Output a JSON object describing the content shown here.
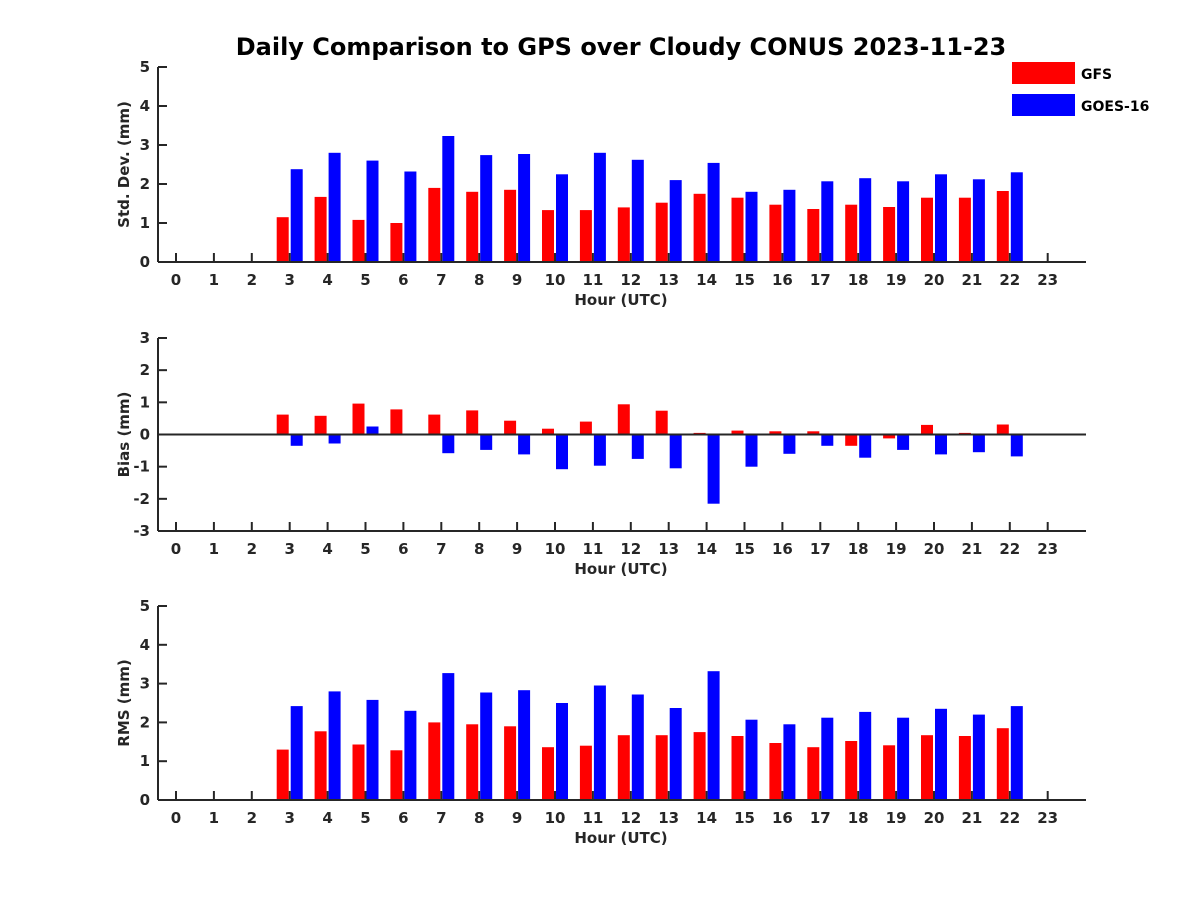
{
  "title": "Daily Comparison to GPS over Cloudy CONUS 2023-11-23",
  "legend": [
    {
      "name": "GFS",
      "color": "#ff0000"
    },
    {
      "name": "GOES-16",
      "color": "#0000ff"
    }
  ],
  "chart_data": [
    {
      "type": "bar",
      "xlabel": "Hour (UTC)",
      "ylabel": "Std. Dev. (mm)",
      "ylim": [
        0,
        5
      ],
      "yticks": [
        0,
        1,
        2,
        3,
        4,
        5
      ],
      "categories": [
        0,
        1,
        2,
        3,
        4,
        5,
        6,
        7,
        8,
        9,
        10,
        11,
        12,
        13,
        14,
        15,
        16,
        17,
        18,
        19,
        20,
        21,
        22,
        23
      ],
      "series": [
        {
          "name": "GFS",
          "color": "#ff0000",
          "values": [
            null,
            null,
            null,
            1.15,
            1.67,
            1.08,
            1.0,
            1.9,
            1.8,
            1.85,
            1.33,
            1.33,
            1.4,
            1.52,
            1.75,
            1.65,
            1.47,
            1.36,
            1.47,
            1.41,
            1.65,
            1.65,
            1.82,
            null
          ]
        },
        {
          "name": "GOES-16",
          "color": "#0000ff",
          "values": [
            null,
            null,
            null,
            2.38,
            2.8,
            2.6,
            2.32,
            3.23,
            2.74,
            2.77,
            2.25,
            2.8,
            2.62,
            2.1,
            2.54,
            1.8,
            1.85,
            2.07,
            2.15,
            2.07,
            2.25,
            2.12,
            2.3,
            null
          ]
        }
      ]
    },
    {
      "type": "bar",
      "xlabel": "Hour (UTC)",
      "ylabel": "Bias (mm)",
      "ylim": [
        -3,
        3
      ],
      "yticks": [
        -3,
        -2,
        -1,
        0,
        1,
        2,
        3
      ],
      "categories": [
        0,
        1,
        2,
        3,
        4,
        5,
        6,
        7,
        8,
        9,
        10,
        11,
        12,
        13,
        14,
        15,
        16,
        17,
        18,
        19,
        20,
        21,
        22,
        23
      ],
      "series": [
        {
          "name": "GFS",
          "color": "#ff0000",
          "values": [
            null,
            null,
            null,
            0.62,
            0.58,
            0.96,
            0.78,
            0.62,
            0.75,
            0.43,
            0.18,
            0.4,
            0.94,
            0.74,
            0.05,
            0.12,
            0.1,
            0.1,
            -0.35,
            -0.12,
            0.3,
            0.05,
            0.31,
            null
          ]
        },
        {
          "name": "GOES-16",
          "color": "#0000ff",
          "values": [
            null,
            null,
            null,
            -0.35,
            -0.28,
            0.25,
            0.02,
            -0.58,
            -0.48,
            -0.62,
            -1.08,
            -0.97,
            -0.76,
            -1.05,
            -2.15,
            -1.0,
            -0.6,
            -0.35,
            -0.72,
            -0.48,
            -0.62,
            -0.55,
            -0.68,
            null
          ]
        }
      ]
    },
    {
      "type": "bar",
      "xlabel": "Hour (UTC)",
      "ylabel": "RMS (mm)",
      "ylim": [
        0,
        5
      ],
      "yticks": [
        0,
        1,
        2,
        3,
        4,
        5
      ],
      "categories": [
        0,
        1,
        2,
        3,
        4,
        5,
        6,
        7,
        8,
        9,
        10,
        11,
        12,
        13,
        14,
        15,
        16,
        17,
        18,
        19,
        20,
        21,
        22,
        23
      ],
      "series": [
        {
          "name": "GFS",
          "color": "#ff0000",
          "values": [
            null,
            null,
            null,
            1.3,
            1.77,
            1.43,
            1.28,
            2.0,
            1.95,
            1.9,
            1.36,
            1.4,
            1.67,
            1.67,
            1.75,
            1.65,
            1.47,
            1.36,
            1.52,
            1.41,
            1.67,
            1.65,
            1.85,
            null
          ]
        },
        {
          "name": "GOES-16",
          "color": "#0000ff",
          "values": [
            null,
            null,
            null,
            2.42,
            2.8,
            2.58,
            2.3,
            3.27,
            2.77,
            2.83,
            2.5,
            2.95,
            2.72,
            2.37,
            3.32,
            2.07,
            1.95,
            2.12,
            2.27,
            2.12,
            2.35,
            2.2,
            2.42,
            null
          ]
        }
      ]
    }
  ]
}
